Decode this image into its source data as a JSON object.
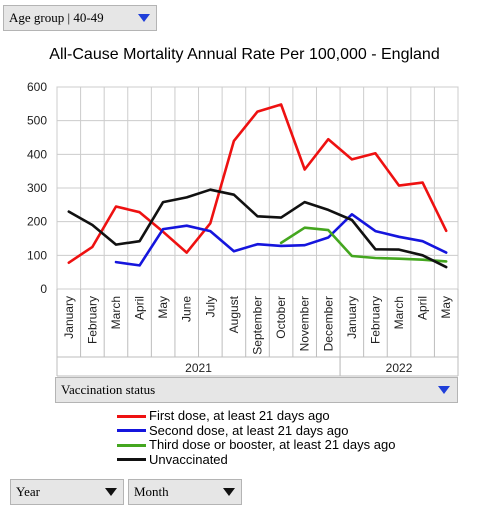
{
  "filters": {
    "age_group": "Age group | 40-49",
    "vaccination": "Vaccination status",
    "year": "Year",
    "month": "Month"
  },
  "chart_data": {
    "type": "line",
    "title": "All-Cause Mortality Annual Rate Per 100,000 - England",
    "xlabel": "",
    "ylabel": "",
    "ylim": [
      0,
      600
    ],
    "yticks": [
      0,
      100,
      200,
      300,
      400,
      500,
      600
    ],
    "grid": true,
    "legend_position": "bottom",
    "categories": [
      "January",
      "February",
      "March",
      "April",
      "May",
      "June",
      "July",
      "August",
      "September",
      "October",
      "November",
      "December",
      "January",
      "February",
      "March",
      "April",
      "May"
    ],
    "year_groups": [
      {
        "label": "2021",
        "start": 0,
        "end": 11
      },
      {
        "label": "2022",
        "start": 12,
        "end": 16
      }
    ],
    "series": [
      {
        "name": "First dose, at least 21 days ago",
        "color": "#ee1111",
        "values": [
          78,
          125,
          245,
          228,
          170,
          108,
          195,
          440,
          527,
          548,
          355,
          445,
          385,
          403,
          307,
          316,
          173
        ]
      },
      {
        "name": "Second dose, at least 21 days ago",
        "color": "#1515dd",
        "values": [
          null,
          null,
          80,
          70,
          178,
          188,
          172,
          112,
          133,
          128,
          130,
          153,
          222,
          172,
          155,
          142,
          108
        ]
      },
      {
        "name": "Third dose or booster, at least 21 days ago",
        "color": "#44a61f",
        "values": [
          null,
          null,
          null,
          null,
          null,
          null,
          null,
          null,
          null,
          137,
          182,
          175,
          98,
          92,
          90,
          87,
          82
        ]
      },
      {
        "name": "Unvaccinated",
        "color": "#111111",
        "values": [
          230,
          190,
          132,
          142,
          258,
          272,
          295,
          280,
          216,
          212,
          258,
          235,
          205,
          118,
          117,
          100,
          65
        ]
      }
    ]
  }
}
